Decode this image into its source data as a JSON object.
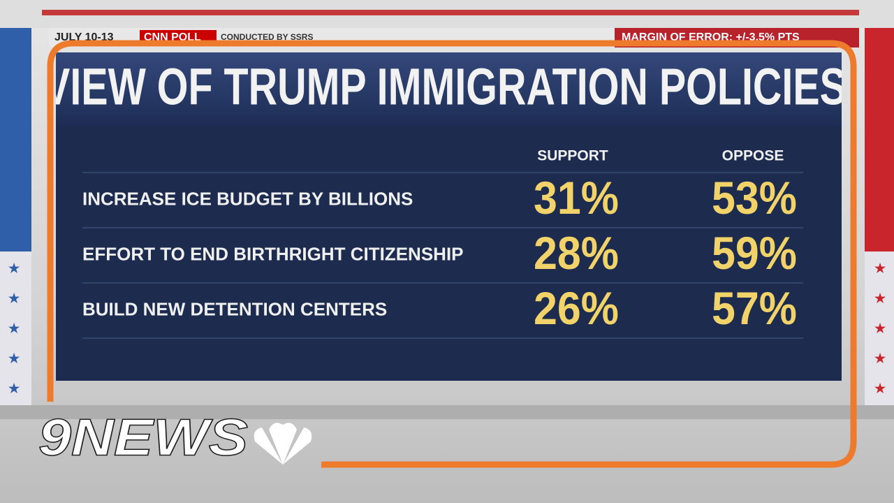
{
  "header": {
    "date": "JULY 10-13",
    "source": "CNN POLL",
    "note": "CONDUCTED BY SSRS",
    "margin": "MARGIN OF ERROR: +/-3.5% PTS"
  },
  "title": "VIEW OF TRUMP IMMIGRATION POLICIES",
  "table": {
    "columns": [
      "SUPPORT",
      "OPPOSE"
    ],
    "rows": [
      {
        "label": "INCREASE ICE BUDGET BY BILLIONS",
        "support": "31%",
        "oppose": "53%"
      },
      {
        "label": "EFFORT TO END BIRTHRIGHT CITIZENSHIP",
        "support": "28%",
        "oppose": "59%"
      },
      {
        "label": "BUILD NEW DETENTION CENTERS",
        "support": "26%",
        "oppose": "57%"
      }
    ]
  },
  "logo": "9NEWS"
}
